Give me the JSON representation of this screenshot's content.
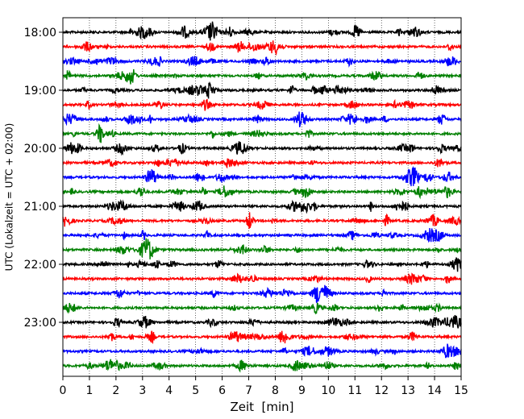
{
  "chart_data": {
    "type": "line",
    "chart_kind": "helicorder seismogram",
    "xlabel": "Zeit  [min]",
    "ylabel": "UTC (Lokalzeit = UTC + 02:00)",
    "xlim": [
      0,
      15
    ],
    "x_ticks": [
      "0",
      "1",
      "2",
      "3",
      "4",
      "5",
      "6",
      "7",
      "8",
      "9",
      "10",
      "11",
      "12",
      "13",
      "14",
      "15"
    ],
    "y_tick_labels": [
      "18:00",
      "19:00",
      "20:00",
      "21:00",
      "22:00",
      "23:00"
    ],
    "trace_start_times": [
      "18:00",
      "18:15",
      "18:30",
      "18:45",
      "19:00",
      "19:15",
      "19:30",
      "19:45",
      "20:00",
      "20:15",
      "20:30",
      "20:45",
      "21:00",
      "21:15",
      "21:30",
      "21:45",
      "22:00",
      "22:15",
      "22:30",
      "22:45",
      "23:00",
      "23:15",
      "23:30",
      "23:45"
    ],
    "trace_colors": [
      "#000000",
      "#ff0000",
      "#0000ff",
      "#008000"
    ],
    "vertical_grid": "dotted, every 1 min",
    "trace_duration_min": 15
  }
}
